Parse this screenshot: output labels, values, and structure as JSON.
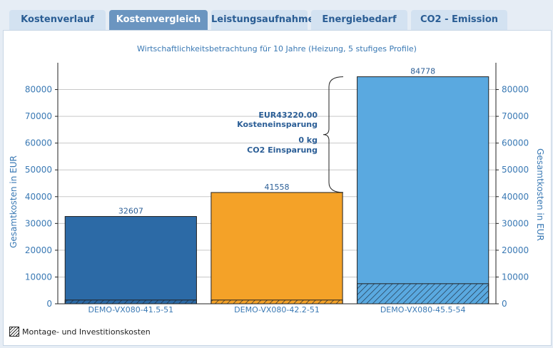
{
  "tabs": [
    {
      "label": "Kostenverlauf",
      "active": false
    },
    {
      "label": "Kostenvergleich",
      "active": true
    },
    {
      "label": "Leistungsaufnahme",
      "active": false
    },
    {
      "label": "Energiebedarf",
      "active": false
    },
    {
      "label": "CO2 - Emission",
      "active": false
    }
  ],
  "colors": {
    "tab_active": "#6b95c0",
    "tab_inactive": "#d3e2f1",
    "axis_text": "#3a79b4",
    "summary_text": "#2b5e96"
  },
  "summary": {
    "savings_amount": "EUR43220.00",
    "savings_label": "Kosteneinsparung",
    "co2_amount": "0 kg",
    "co2_label": "CO2 Einsparung"
  },
  "legend": {
    "label": "Montage- und Investitionskosten",
    "icon": "hatch-swatch"
  },
  "chart_data": {
    "type": "bar",
    "title": "Wirtschaftlichkeitsbetrachtung für 10 Jahre (Heizung, 5 stufiges Profile)",
    "ylabel": "Gesamtkosten in EUR",
    "y2label": "Gesamtkosten in EUR",
    "ylim": [
      0,
      90000
    ],
    "yticks": [
      0,
      10000,
      20000,
      30000,
      40000,
      50000,
      60000,
      70000,
      80000
    ],
    "grid": true,
    "categories": [
      "DEMO-VX080-41.5-51",
      "DEMO-VX080-42.2-51",
      "DEMO-VX080-45.5-54"
    ],
    "values": [
      32607,
      41558,
      84778
    ],
    "installation_costs": [
      1400,
      1400,
      7500
    ],
    "bar_colors": [
      "#2c6aa6",
      "#f4a228",
      "#5aa9e0"
    ],
    "data_labels": [
      "32607",
      "41558",
      "84778"
    ]
  }
}
